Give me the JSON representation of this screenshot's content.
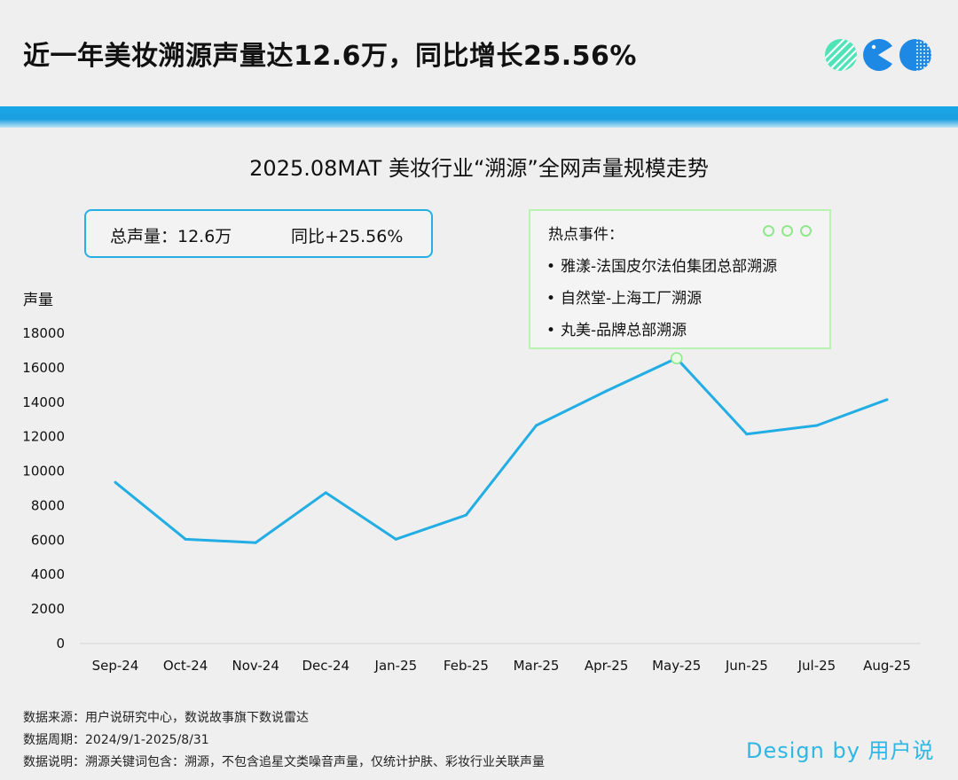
{
  "headline": "近一年美妆溯源声量达12.6万，同比增长25.56%",
  "colors": {
    "accent": "#1eaee6",
    "line": "#22ade4",
    "events_border": "#b9f3b2",
    "logo_green": "#4fe3b8",
    "logo_blue": "#1e88e5"
  },
  "logo": {
    "icon_names": [
      "striped-circle-icon",
      "pacman-icon",
      "dotted-circle-icon"
    ]
  },
  "summary": {
    "total": "总声量：12.6万",
    "yoy": "同比+25.56%"
  },
  "events": {
    "title": "热点事件：",
    "items": [
      "雅漾-法国皮尔法伯集团总部溯源",
      "自然堂-上海工厂溯源",
      "丸美-品牌总部溯源"
    ]
  },
  "chart_data": {
    "type": "line",
    "title": "2025.08MAT 美妆行业“溯源”全网声量规模走势",
    "ylabel": "声量",
    "xlabel": "",
    "categories": [
      "Sep-24",
      "Oct-24",
      "Nov-24",
      "Dec-24",
      "Jan-25",
      "Feb-25",
      "Mar-25",
      "Apr-25",
      "May-25",
      "Jun-25",
      "Jul-25",
      "Aug-25"
    ],
    "series": [
      {
        "values": [
          9300,
          6000,
          5800,
          8700,
          6000,
          7400,
          12600,
          14600,
          16500,
          12100,
          12600,
          14100
        ]
      }
    ],
    "yticks": [
      0,
      2000,
      4000,
      6000,
      8000,
      10000,
      12000,
      14000,
      16000,
      18000
    ],
    "ylim": [
      0,
      18000
    ],
    "highlight_index": 8,
    "grid": false,
    "legend": "none"
  },
  "footer": {
    "source": "数据来源：用户说研究中心，数说故事旗下数说雷达",
    "period": "数据周期：2024/9/1-2025/8/31",
    "note": "数据说明：溯源关键词包含：溯源，不包含追星文类噪音声量，仅统计护肤、彩妆行业关联声量"
  },
  "credit": "Design by 用户说"
}
